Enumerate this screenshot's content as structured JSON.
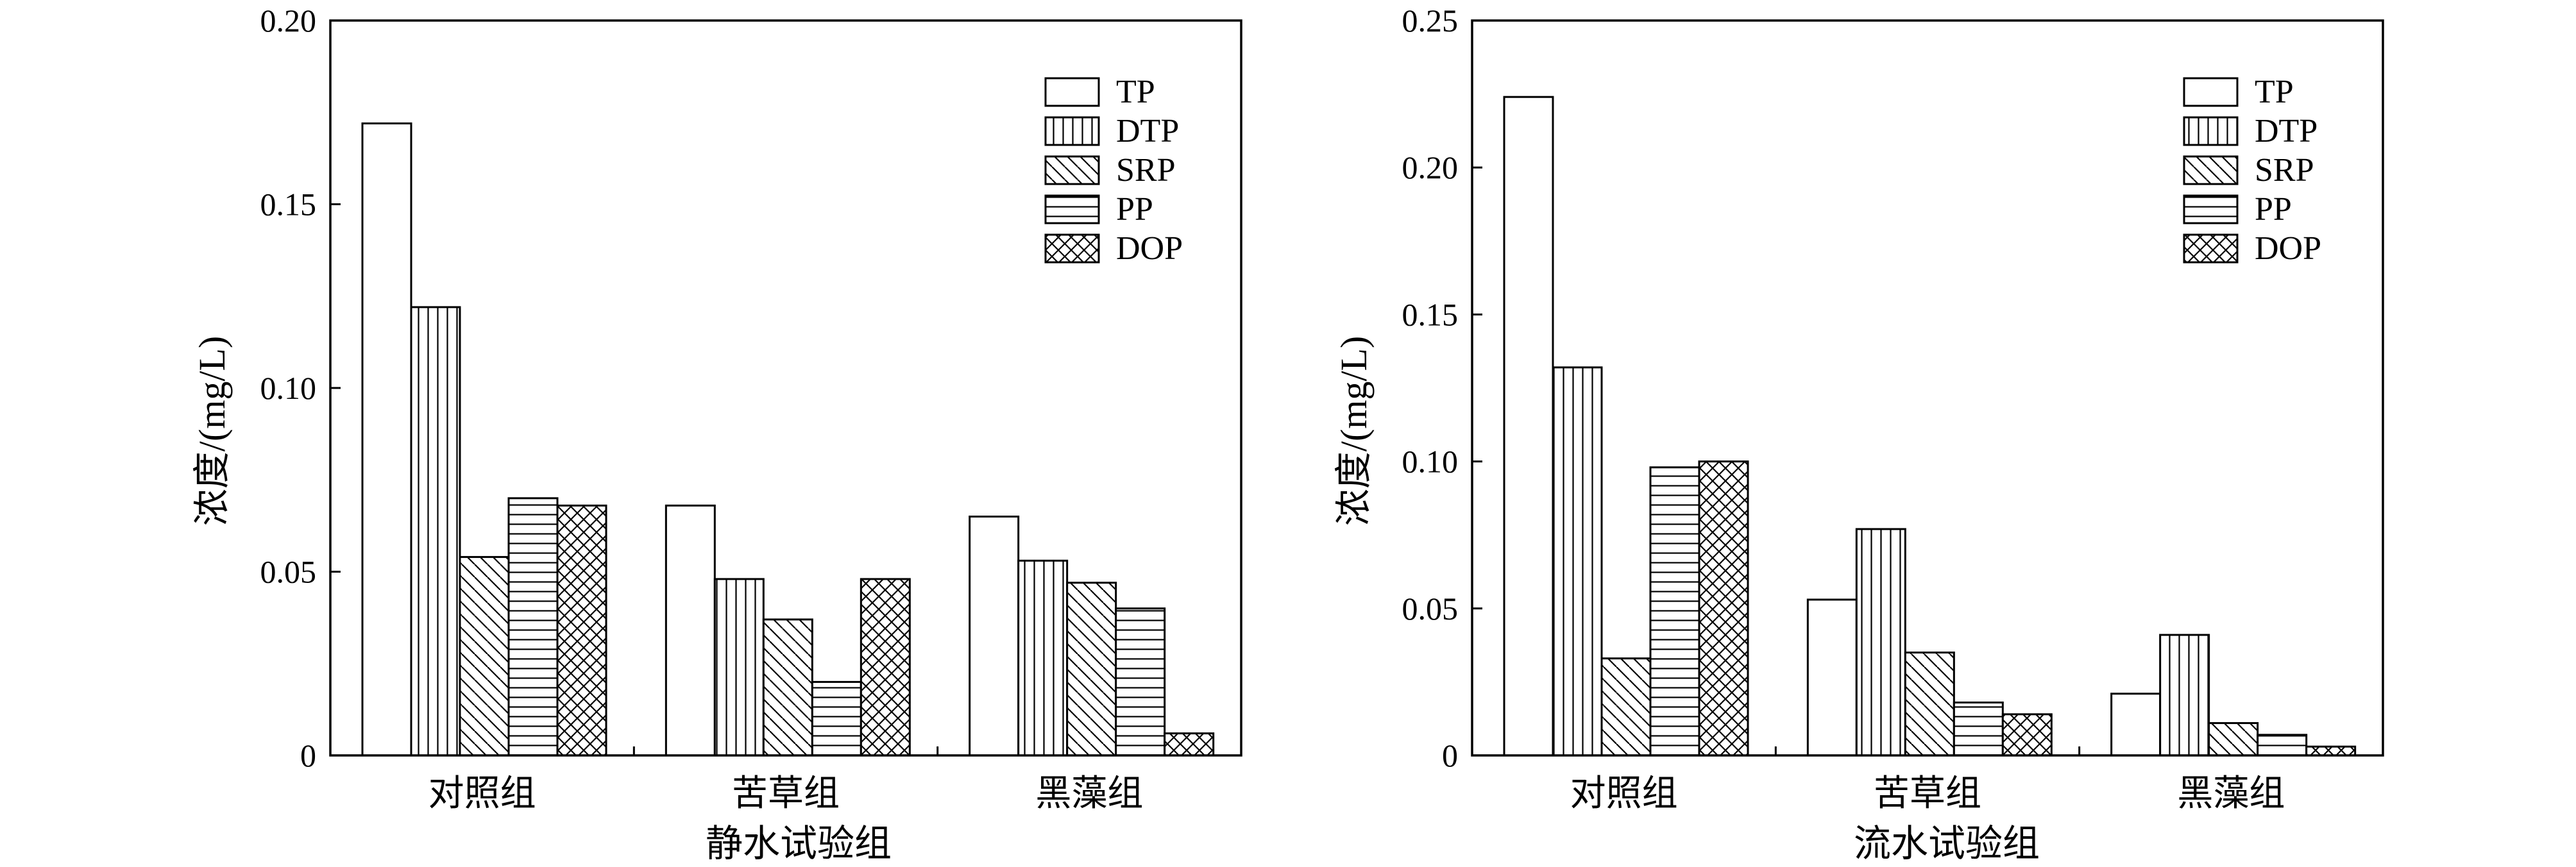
{
  "legend": [
    "TP",
    "DTP",
    "SRP",
    "PP",
    "DOP"
  ],
  "chart_data": [
    {
      "type": "bar",
      "xlabel": "静水试验组",
      "ylabel": "浓度/(mg/L)",
      "categories": [
        "对照组",
        "苦草组",
        "黑藻组"
      ],
      "ylim": [
        0,
        0.2
      ],
      "yticks": [
        "0",
        "0.05",
        "0.10",
        "0.15",
        "0.20"
      ],
      "series": [
        {
          "name": "TP",
          "pattern": "empty",
          "values": [
            0.172,
            0.068,
            0.065
          ]
        },
        {
          "name": "DTP",
          "pattern": "vertical",
          "values": [
            0.122,
            0.048,
            0.053
          ]
        },
        {
          "name": "SRP",
          "pattern": "diagonal",
          "values": [
            0.054,
            0.037,
            0.047
          ]
        },
        {
          "name": "PP",
          "pattern": "horizontal",
          "values": [
            0.07,
            0.02,
            0.04
          ]
        },
        {
          "name": "DOP",
          "pattern": "crosshatch",
          "values": [
            0.068,
            0.048,
            0.006
          ]
        }
      ],
      "legend_position": "top-right",
      "grid": false
    },
    {
      "type": "bar",
      "xlabel": "流水试验组",
      "ylabel": "浓度/(mg/L)",
      "categories": [
        "对照组",
        "苦草组",
        "黑藻组"
      ],
      "ylim": [
        0,
        0.25
      ],
      "yticks": [
        "0",
        "0.05",
        "0.10",
        "0.15",
        "0.20",
        "0.25"
      ],
      "series": [
        {
          "name": "TP",
          "pattern": "empty",
          "values": [
            0.224,
            0.053,
            0.021
          ]
        },
        {
          "name": "DTP",
          "pattern": "vertical",
          "values": [
            0.132,
            0.077,
            0.041
          ]
        },
        {
          "name": "SRP",
          "pattern": "diagonal",
          "values": [
            0.033,
            0.035,
            0.011
          ]
        },
        {
          "name": "PP",
          "pattern": "horizontal",
          "values": [
            0.098,
            0.018,
            0.007
          ]
        },
        {
          "name": "DOP",
          "pattern": "crosshatch",
          "values": [
            0.1,
            0.014,
            0.003
          ]
        }
      ],
      "legend_position": "top-right",
      "grid": false
    }
  ]
}
